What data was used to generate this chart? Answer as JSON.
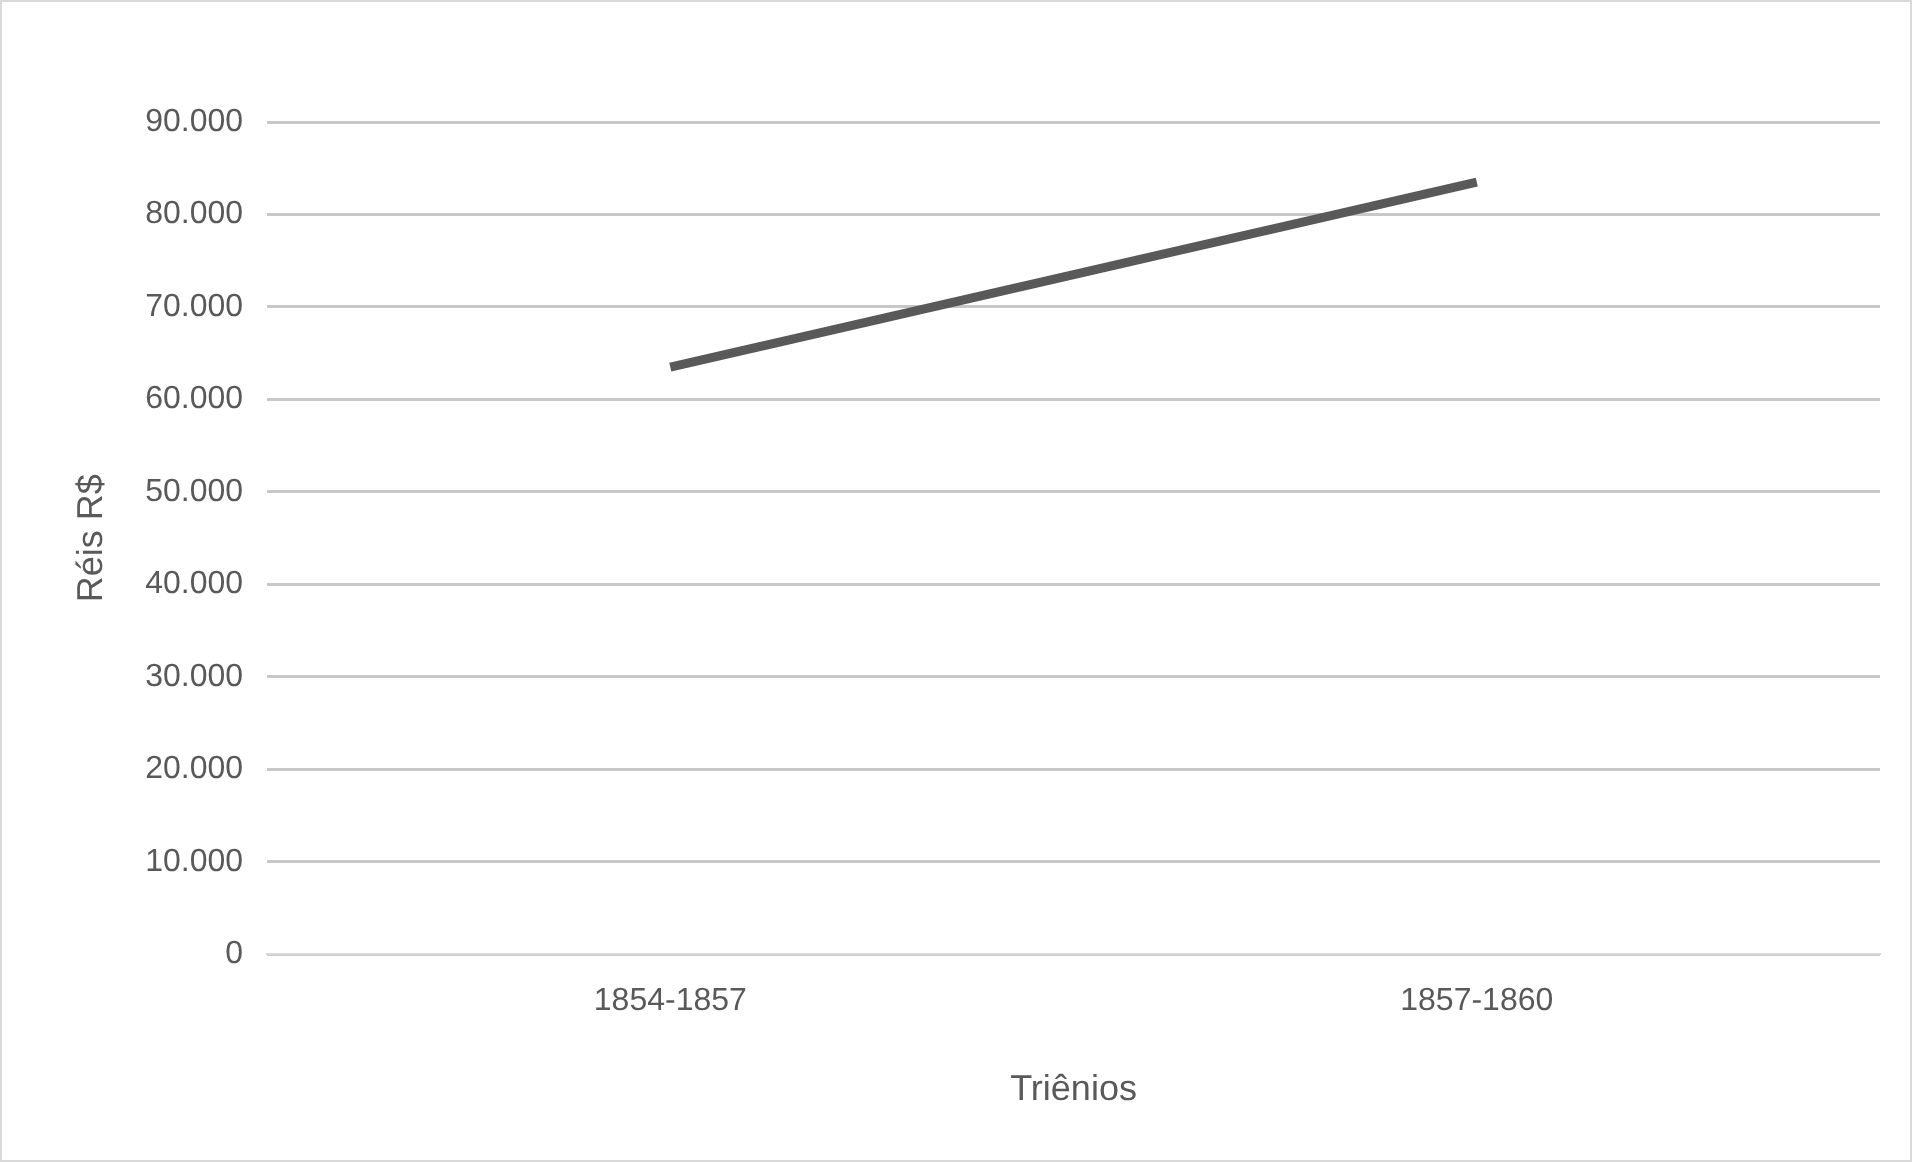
{
  "chart_data": {
    "type": "line",
    "xlabel": "Triênios",
    "ylabel": "Réis R$",
    "categories": [
      "1854-1857",
      "1857-1860"
    ],
    "series": [
      {
        "color": "#595959",
        "values": [
          63500,
          83500
        ]
      }
    ],
    "ylim": [
      0,
      90000
    ],
    "yticks": [
      {
        "value": 0,
        "label": "0"
      },
      {
        "value": 10000,
        "label": "10.000"
      },
      {
        "value": 20000,
        "label": "20.000"
      },
      {
        "value": 30000,
        "label": "30.000"
      },
      {
        "value": 40000,
        "label": "40.000"
      },
      {
        "value": 50000,
        "label": "50.000"
      },
      {
        "value": 60000,
        "label": "60.000"
      },
      {
        "value": 70000,
        "label": "70.000"
      },
      {
        "value": 80000,
        "label": "80.000"
      },
      {
        "value": 90000,
        "label": "90.000"
      }
    ],
    "grid": "y",
    "legend": false,
    "marker": "none",
    "line_style": "solid"
  }
}
